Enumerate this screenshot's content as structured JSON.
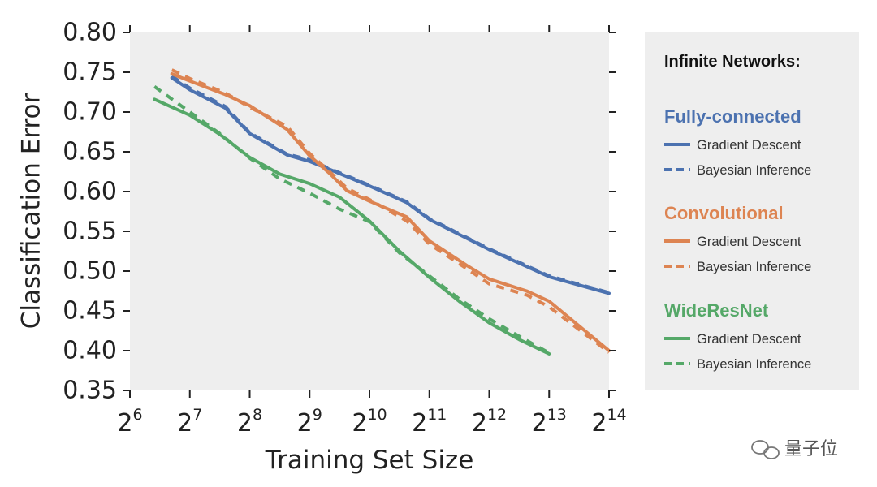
{
  "chart_data": {
    "type": "line",
    "xlabel": "Training Set Size",
    "ylabel": "Classification Error",
    "xscale": "log2",
    "xlim": [
      64,
      16384
    ],
    "ylim": [
      0.35,
      0.8
    ],
    "grid": false,
    "legend_position": "right",
    "x_ticks": [
      {
        "value": 64,
        "base": "2",
        "exp": "6"
      },
      {
        "value": 128,
        "base": "2",
        "exp": "7"
      },
      {
        "value": 256,
        "base": "2",
        "exp": "8"
      },
      {
        "value": 512,
        "base": "2",
        "exp": "9"
      },
      {
        "value": 1024,
        "base": "2",
        "exp": "10"
      },
      {
        "value": 2048,
        "base": "2",
        "exp": "11"
      },
      {
        "value": 4096,
        "base": "2",
        "exp": "12"
      },
      {
        "value": 8192,
        "base": "2",
        "exp": "13"
      },
      {
        "value": 16384,
        "base": "2",
        "exp": "14"
      }
    ],
    "y_ticks": [
      0.8,
      0.75,
      0.7,
      0.65,
      0.6,
      0.55,
      0.5,
      0.45,
      0.4,
      0.35
    ],
    "y_tick_labels": [
      "0.80",
      "0.75",
      "0.70",
      "0.65",
      "0.60",
      "0.55",
      "0.50",
      "0.45",
      "0.40",
      "0.35"
    ],
    "legend": {
      "title": "Infinite Networks:",
      "groups": [
        {
          "name": "Fully-connected",
          "color": "#4c72b0",
          "entries": [
            "Gradient Descent",
            "Bayesian Inference"
          ]
        },
        {
          "name": "Convolutional",
          "color": "#dd8452",
          "entries": [
            "Gradient Descent",
            "Bayesian Inference"
          ]
        },
        {
          "name": "WideResNet",
          "color": "#55a868",
          "entries": [
            "Gradient Descent",
            "Bayesian Inference"
          ]
        }
      ]
    },
    "series": [
      {
        "name": "Fully-connected Gradient Descent",
        "color": "#4c72b0",
        "style": "solid",
        "x": [
          104,
          128,
          193,
          256,
          395,
          512,
          645,
          1024,
          1580,
          2048,
          4096,
          8192,
          16384
        ],
        "y": [
          0.743,
          0.728,
          0.705,
          0.673,
          0.646,
          0.638,
          0.628,
          0.607,
          0.586,
          0.565,
          0.527,
          0.493,
          0.472
        ]
      },
      {
        "name": "Fully-connected Bayesian Inference",
        "color": "#4c72b0",
        "style": "dashed",
        "x": [
          104,
          128,
          193,
          256,
          395,
          512,
          645,
          1024,
          1580,
          2048,
          4096,
          8192,
          16384
        ],
        "y": [
          0.745,
          0.73,
          0.707,
          0.674,
          0.647,
          0.64,
          0.629,
          0.608,
          0.587,
          0.566,
          0.528,
          0.494,
          0.473
        ]
      },
      {
        "name": "Convolutional Gradient Descent",
        "color": "#dd8452",
        "style": "solid",
        "x": [
          104,
          128,
          193,
          256,
          395,
          512,
          645,
          790,
          1024,
          1580,
          2048,
          3160,
          4096,
          6320,
          8192,
          16384
        ],
        "y": [
          0.748,
          0.739,
          0.722,
          0.708,
          0.678,
          0.645,
          0.623,
          0.601,
          0.588,
          0.568,
          0.538,
          0.507,
          0.49,
          0.475,
          0.462,
          0.4
        ]
      },
      {
        "name": "Convolutional Bayesian Inference",
        "color": "#dd8452",
        "style": "dashed",
        "x": [
          104,
          128,
          193,
          256,
          395,
          512,
          645,
          790,
          1024,
          1580,
          2048,
          3160,
          4096,
          6320,
          8192,
          16384
        ],
        "y": [
          0.753,
          0.742,
          0.724,
          0.706,
          0.682,
          0.648,
          0.625,
          0.604,
          0.59,
          0.563,
          0.534,
          0.503,
          0.484,
          0.47,
          0.455,
          0.398
        ]
      },
      {
        "name": "WideResNet Gradient Descent",
        "color": "#55a868",
        "style": "solid",
        "x": [
          85,
          128,
          181,
          256,
          362,
          512,
          724,
          1024,
          1448,
          2048,
          2896,
          4096,
          5793,
          8192
        ],
        "y": [
          0.716,
          0.696,
          0.672,
          0.643,
          0.622,
          0.61,
          0.593,
          0.563,
          0.525,
          0.492,
          0.462,
          0.435,
          0.414,
          0.396
        ]
      },
      {
        "name": "WideResNet Bayesian Inference",
        "color": "#55a868",
        "style": "dashed",
        "x": [
          85,
          128,
          181,
          256,
          362,
          512,
          724,
          1024,
          1448,
          2048,
          2896,
          4096,
          5793,
          8192
        ],
        "y": [
          0.732,
          0.7,
          0.673,
          0.642,
          0.616,
          0.598,
          0.578,
          0.562,
          0.523,
          0.494,
          0.465,
          0.44,
          0.418,
          0.397
        ]
      }
    ]
  },
  "watermark": {
    "text": "量子位",
    "icon": "wechat-icon"
  }
}
